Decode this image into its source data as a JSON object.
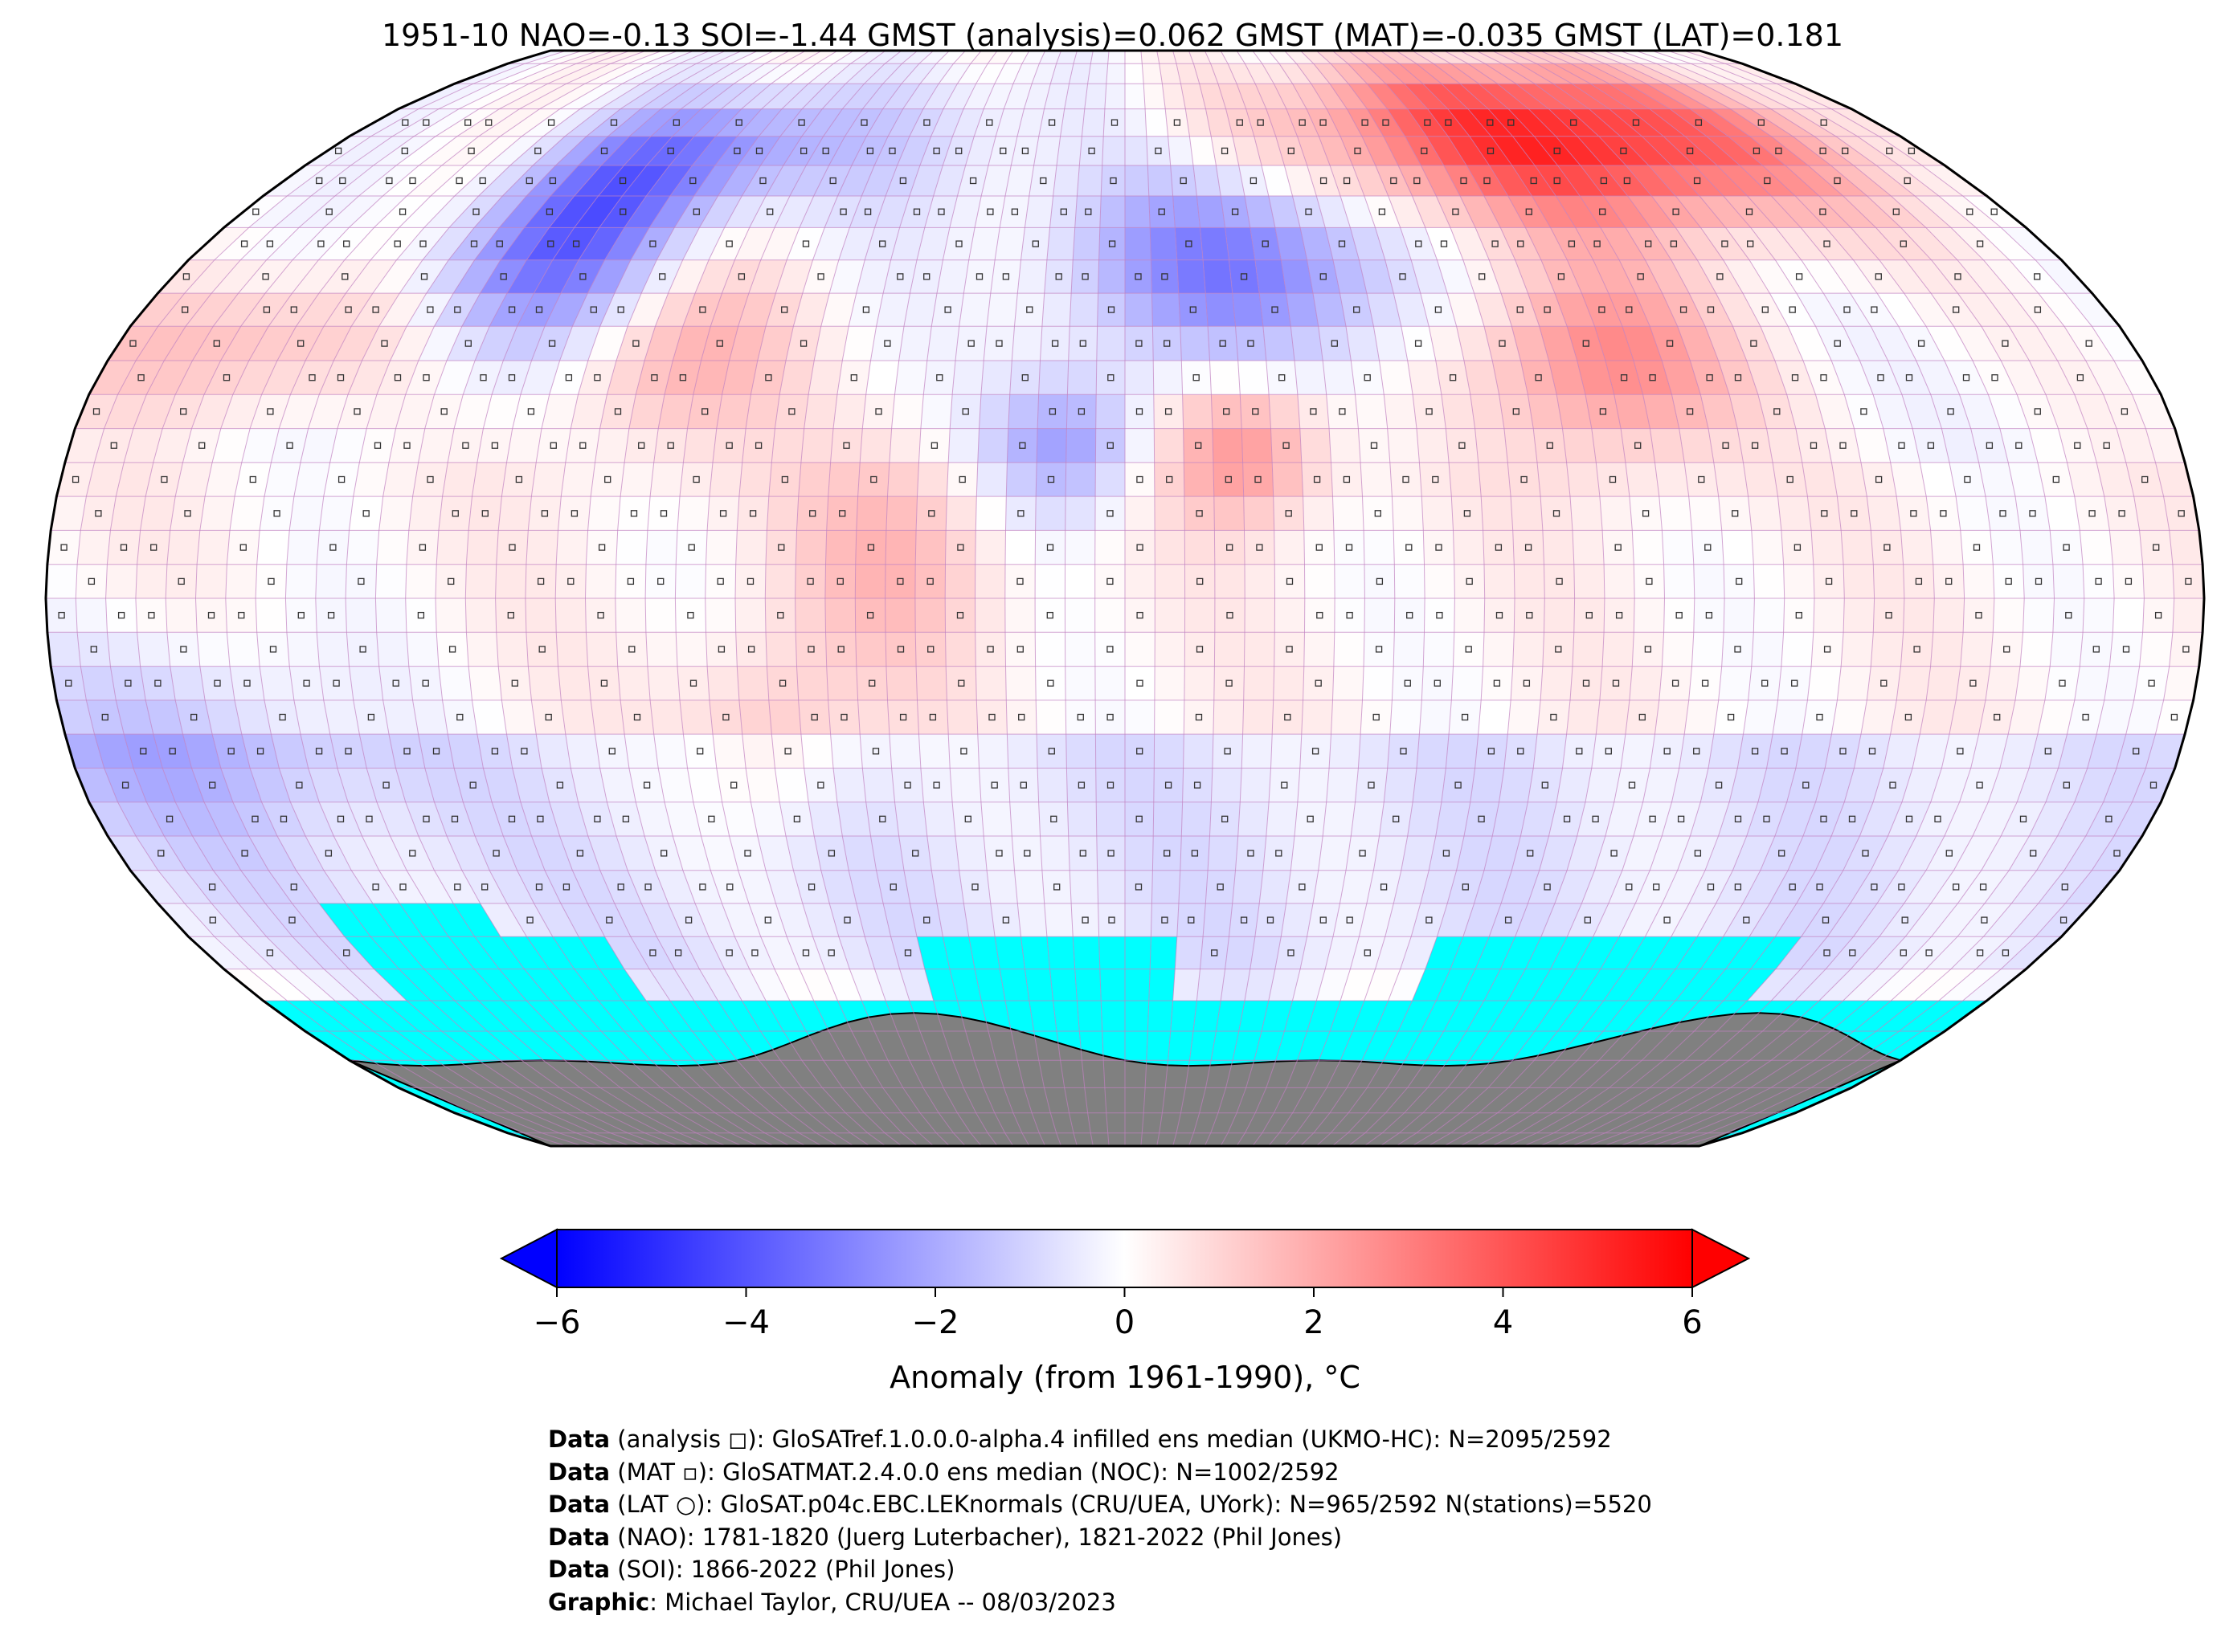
{
  "title": "1951-10 NAO=-0.13 SOI=-1.44 GMST (analysis)=0.062 GMST (MAT)=-0.035 GMST (LAT)=0.181",
  "colors": {
    "cold_extreme": "#0000ff",
    "warm_extreme": "#ff0000",
    "neutral": "#ffffff",
    "missing_ocean": "#00ffff",
    "land_mask": "#808080",
    "grid_line": "#c080c0"
  },
  "colorbar": {
    "min": -6,
    "max": 6,
    "extend": "both",
    "ticks": [
      "−6",
      "−4",
      "−2",
      "0",
      "2",
      "4",
      "6"
    ],
    "label": "Anomaly (from 1961-1990), °C"
  },
  "credits": [
    {
      "key": "Data",
      "text": " (analysis ◻): GloSATref.1.0.0.0-alpha.4 infilled ens median (UKMO-HC): N=2095/2592"
    },
    {
      "key": "Data",
      "text": " (MAT ▫): GloSATMAT.2.4.0.0 ens median (NOC): N=1002/2592"
    },
    {
      "key": "Data",
      "text": " (LAT ○): GloSAT.p04c.EBC.LEKnormals (CRU/UEA, UYork): N=965/2592 N(stations)=5520"
    },
    {
      "key": "Data",
      "text": " (NAO): 1781-1820 (Juerg Luterbacher), 1821-2022 (Phil Jones)"
    },
    {
      "key": "Data",
      "text": " (SOI): 1866-2022 (Phil Jones)"
    },
    {
      "key": "Graphic",
      "text": ": Michael Taylor, CRU/UEA -- 08/03/2023"
    }
  ],
  "map": {
    "projection": "robinson",
    "grid_resolution_deg": 5,
    "anomaly_regions": [
      {
        "name": "north-america-cold",
        "lon": [
          -125,
          -95
        ],
        "lat": [
          40,
          65
        ],
        "value": -3.6
      },
      {
        "name": "eastern-us-warm",
        "lon": [
          -95,
          -65
        ],
        "lat": [
          25,
          45
        ],
        "value": 1.8
      },
      {
        "name": "canada-arctic-cold",
        "lon": [
          -110,
          -70
        ],
        "lat": [
          60,
          75
        ],
        "value": -2.2
      },
      {
        "name": "greenland-mixed",
        "lon": [
          -60,
          -20
        ],
        "lat": [
          60,
          80
        ],
        "value": -0.8
      },
      {
        "name": "europe-cold",
        "lon": [
          0,
          45
        ],
        "lat": [
          40,
          60
        ],
        "value": -3.2
      },
      {
        "name": "siberia-warm",
        "lon": [
          60,
          140
        ],
        "lat": [
          60,
          80
        ],
        "value": 5.2
      },
      {
        "name": "central-asia-warm",
        "lon": [
          70,
          100
        ],
        "lat": [
          25,
          45
        ],
        "value": 3.0
      },
      {
        "name": "north-africa-cold",
        "lon": [
          -20,
          0
        ],
        "lat": [
          15,
          30
        ],
        "value": -2.4
      },
      {
        "name": "sahara-warm",
        "lon": [
          10,
          30
        ],
        "lat": [
          15,
          30
        ],
        "value": 2.6
      },
      {
        "name": "tropical-atlantic-warm",
        "lon": [
          -50,
          -25
        ],
        "lat": [
          -5,
          20
        ],
        "value": 1.4
      },
      {
        "name": "east-pacific-cold",
        "lon": [
          -180,
          -140
        ],
        "lat": [
          -30,
          -10
        ],
        "value": -1.5
      },
      {
        "name": "south-america-warm",
        "lon": [
          -70,
          -50
        ],
        "lat": [
          -30,
          -10
        ],
        "value": 1.2
      },
      {
        "name": "north-pacific-warm",
        "lon": [
          -180,
          -130
        ],
        "lat": [
          30,
          45
        ],
        "value": 1.6
      }
    ]
  }
}
